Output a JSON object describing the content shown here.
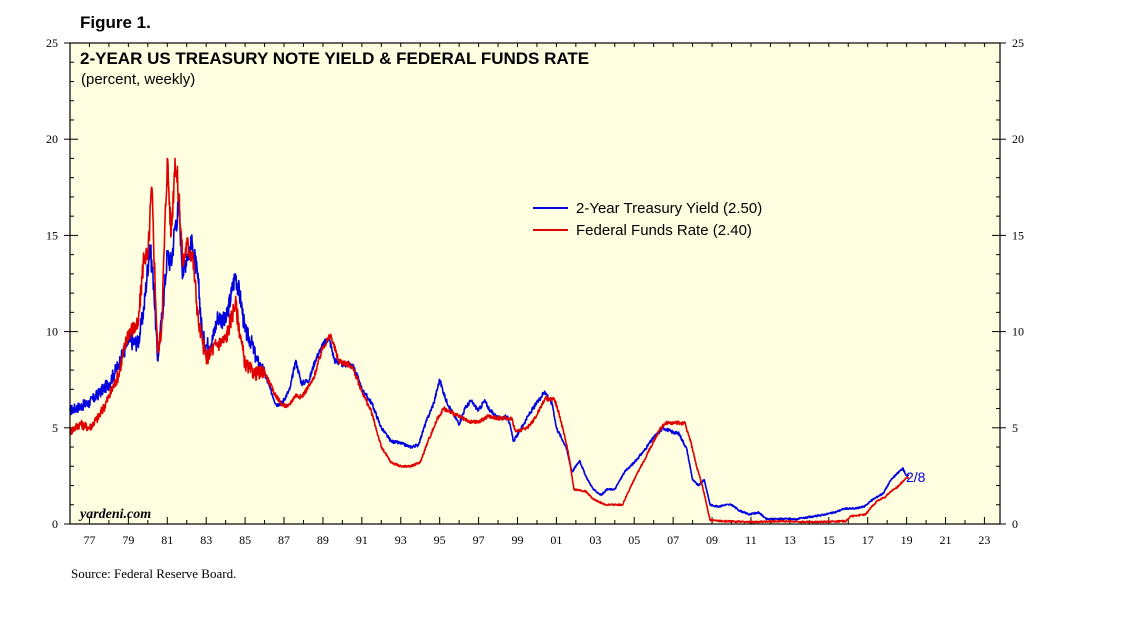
{
  "figure_label": "Figure 1.",
  "source_note": "Source: Federal Reserve Board.",
  "colors": {
    "plot_background": "#FFFEE0",
    "treasury": "#0000E0",
    "fedfunds": "#E00000",
    "axis": "#000000"
  },
  "chart_data": {
    "type": "line",
    "title": "2-YEAR US TREASURY NOTE YIELD & FEDERAL FUNDS RATE",
    "subtitle": "(percent, weekly)",
    "watermark": "yardeni.com",
    "end_label": "2/8",
    "xlabel": "",
    "ylabel": "",
    "xlim": [
      1976.0,
      2023.8
    ],
    "ylim": [
      0,
      25
    ],
    "x_tick_labels": [
      "77",
      "79",
      "81",
      "83",
      "85",
      "87",
      "89",
      "91",
      "93",
      "95",
      "97",
      "99",
      "01",
      "03",
      "05",
      "07",
      "09",
      "11",
      "13",
      "15",
      "17",
      "19",
      "21",
      "23"
    ],
    "x_tick_positions": [
      1977,
      1979,
      1981,
      1983,
      1985,
      1987,
      1989,
      1991,
      1993,
      1995,
      1997,
      1999,
      2001,
      2003,
      2005,
      2007,
      2009,
      2011,
      2013,
      2015,
      2017,
      2019,
      2021,
      2023
    ],
    "y_ticks": [
      0,
      5,
      10,
      15,
      20,
      25
    ],
    "legend": {
      "placement": "upper-center"
    },
    "series": [
      {
        "name": "2-Year Treasury Yield (2.50)",
        "color_key": "treasury",
        "points": [
          [
            1976.0,
            5.9
          ],
          [
            1976.5,
            6.1
          ],
          [
            1977.0,
            6.3
          ],
          [
            1977.5,
            6.8
          ],
          [
            1978.0,
            7.3
          ],
          [
            1978.5,
            8.3
          ],
          [
            1979.0,
            9.5
          ],
          [
            1979.5,
            9.4
          ],
          [
            1979.8,
            11.2
          ],
          [
            1980.1,
            14.5
          ],
          [
            1980.3,
            12.5
          ],
          [
            1980.5,
            8.5
          ],
          [
            1980.8,
            11.5
          ],
          [
            1981.0,
            14.0
          ],
          [
            1981.2,
            13.5
          ],
          [
            1981.4,
            15.5
          ],
          [
            1981.6,
            16.5
          ],
          [
            1981.8,
            13.0
          ],
          [
            1982.0,
            14.0
          ],
          [
            1982.3,
            14.5
          ],
          [
            1982.6,
            12.5
          ],
          [
            1982.8,
            9.8
          ],
          [
            1983.0,
            9.3
          ],
          [
            1983.3,
            9.5
          ],
          [
            1983.6,
            10.8
          ],
          [
            1984.0,
            10.5
          ],
          [
            1984.3,
            12.0
          ],
          [
            1984.5,
            13.0
          ],
          [
            1984.8,
            11.5
          ],
          [
            1985.0,
            10.0
          ],
          [
            1985.3,
            9.5
          ],
          [
            1985.6,
            8.5
          ],
          [
            1986.0,
            7.8
          ],
          [
            1986.3,
            7.0
          ],
          [
            1986.6,
            6.2
          ],
          [
            1986.9,
            6.3
          ],
          [
            1987.3,
            7.0
          ],
          [
            1987.6,
            8.5
          ],
          [
            1987.9,
            7.3
          ],
          [
            1988.3,
            7.5
          ],
          [
            1988.6,
            8.5
          ],
          [
            1989.0,
            9.3
          ],
          [
            1989.3,
            9.7
          ],
          [
            1989.6,
            8.5
          ],
          [
            1990.0,
            8.3
          ],
          [
            1990.5,
            8.3
          ],
          [
            1990.8,
            7.6
          ],
          [
            1991.0,
            7.0
          ],
          [
            1991.5,
            6.3
          ],
          [
            1992.0,
            5.0
          ],
          [
            1992.5,
            4.3
          ],
          [
            1993.0,
            4.2
          ],
          [
            1993.5,
            4.0
          ],
          [
            1993.9,
            4.1
          ],
          [
            1994.3,
            5.3
          ],
          [
            1994.7,
            6.3
          ],
          [
            1995.0,
            7.5
          ],
          [
            1995.3,
            6.5
          ],
          [
            1995.6,
            5.9
          ],
          [
            1996.0,
            5.2
          ],
          [
            1996.3,
            6.0
          ],
          [
            1996.6,
            6.4
          ],
          [
            1997.0,
            5.9
          ],
          [
            1997.3,
            6.4
          ],
          [
            1997.6,
            5.9
          ],
          [
            1998.0,
            5.5
          ],
          [
            1998.5,
            5.6
          ],
          [
            1998.8,
            4.3
          ],
          [
            1999.2,
            5.0
          ],
          [
            1999.6,
            5.7
          ],
          [
            2000.0,
            6.3
          ],
          [
            2000.4,
            6.9
          ],
          [
            2000.8,
            6.2
          ],
          [
            2001.0,
            5.0
          ],
          [
            2001.5,
            4.0
          ],
          [
            2001.8,
            2.7
          ],
          [
            2002.2,
            3.3
          ],
          [
            2002.5,
            2.5
          ],
          [
            2002.9,
            1.8
          ],
          [
            2003.3,
            1.5
          ],
          [
            2003.6,
            1.8
          ],
          [
            2004.0,
            1.8
          ],
          [
            2004.5,
            2.7
          ],
          [
            2005.0,
            3.2
          ],
          [
            2005.5,
            3.8
          ],
          [
            2006.0,
            4.5
          ],
          [
            2006.5,
            5.0
          ],
          [
            2006.9,
            4.8
          ],
          [
            2007.3,
            4.7
          ],
          [
            2007.7,
            3.9
          ],
          [
            2008.0,
            2.3
          ],
          [
            2008.3,
            2.0
          ],
          [
            2008.6,
            2.3
          ],
          [
            2008.9,
            1.0
          ],
          [
            2009.3,
            0.9
          ],
          [
            2009.7,
            1.0
          ],
          [
            2010.0,
            1.0
          ],
          [
            2010.4,
            0.7
          ],
          [
            2010.9,
            0.5
          ],
          [
            2011.4,
            0.6
          ],
          [
            2011.8,
            0.25
          ],
          [
            2012.3,
            0.27
          ],
          [
            2012.8,
            0.27
          ],
          [
            2013.3,
            0.25
          ],
          [
            2013.8,
            0.33
          ],
          [
            2014.3,
            0.4
          ],
          [
            2014.8,
            0.5
          ],
          [
            2015.3,
            0.6
          ],
          [
            2015.8,
            0.8
          ],
          [
            2016.3,
            0.8
          ],
          [
            2016.8,
            0.9
          ],
          [
            2017.3,
            1.3
          ],
          [
            2017.8,
            1.6
          ],
          [
            2018.2,
            2.3
          ],
          [
            2018.5,
            2.6
          ],
          [
            2018.8,
            2.9
          ],
          [
            2019.0,
            2.5
          ],
          [
            2019.1,
            2.5
          ]
        ]
      },
      {
        "name": "Federal Funds Rate (2.40)",
        "color_key": "fedfunds",
        "points": [
          [
            1976.0,
            4.8
          ],
          [
            1976.5,
            5.2
          ],
          [
            1977.0,
            5.0
          ],
          [
            1977.5,
            5.6
          ],
          [
            1978.0,
            6.6
          ],
          [
            1978.5,
            7.8
          ],
          [
            1979.0,
            10.0
          ],
          [
            1979.5,
            10.3
          ],
          [
            1979.8,
            14.0
          ],
          [
            1980.0,
            13.8
          ],
          [
            1980.2,
            17.5
          ],
          [
            1980.5,
            9.0
          ],
          [
            1980.7,
            10.0
          ],
          [
            1981.0,
            19.0
          ],
          [
            1981.2,
            15.0
          ],
          [
            1981.4,
            19.0
          ],
          [
            1981.6,
            17.0
          ],
          [
            1981.8,
            13.5
          ],
          [
            1982.0,
            14.5
          ],
          [
            1982.3,
            14.0
          ],
          [
            1982.6,
            10.5
          ],
          [
            1982.8,
            9.5
          ],
          [
            1983.0,
            8.6
          ],
          [
            1983.5,
            9.3
          ],
          [
            1984.0,
            9.6
          ],
          [
            1984.5,
            11.5
          ],
          [
            1984.8,
            9.5
          ],
          [
            1985.0,
            8.3
          ],
          [
            1985.5,
            7.8
          ],
          [
            1986.0,
            7.9
          ],
          [
            1986.5,
            6.8
          ],
          [
            1986.9,
            6.2
          ],
          [
            1987.2,
            6.1
          ],
          [
            1987.6,
            6.7
          ],
          [
            1987.9,
            6.6
          ],
          [
            1988.5,
            7.5
          ],
          [
            1989.0,
            9.2
          ],
          [
            1989.4,
            9.8
          ],
          [
            1989.8,
            8.5
          ],
          [
            1990.5,
            8.2
          ],
          [
            1991.0,
            6.9
          ],
          [
            1991.5,
            5.8
          ],
          [
            1992.0,
            4.0
          ],
          [
            1992.5,
            3.2
          ],
          [
            1993.0,
            3.0
          ],
          [
            1993.5,
            3.0
          ],
          [
            1994.0,
            3.2
          ],
          [
            1994.4,
            4.3
          ],
          [
            1994.9,
            5.5
          ],
          [
            1995.2,
            6.0
          ],
          [
            1995.8,
            5.7
          ],
          [
            1996.5,
            5.3
          ],
          [
            1997.0,
            5.3
          ],
          [
            1997.5,
            5.6
          ],
          [
            1998.0,
            5.5
          ],
          [
            1998.7,
            5.5
          ],
          [
            1998.9,
            4.8
          ],
          [
            1999.5,
            5.0
          ],
          [
            1999.9,
            5.5
          ],
          [
            2000.4,
            6.5
          ],
          [
            2000.9,
            6.5
          ],
          [
            2001.2,
            5.5
          ],
          [
            2001.6,
            3.8
          ],
          [
            2001.9,
            1.8
          ],
          [
            2002.5,
            1.7
          ],
          [
            2002.9,
            1.3
          ],
          [
            2003.5,
            1.0
          ],
          [
            2004.4,
            1.0
          ],
          [
            2004.8,
            1.9
          ],
          [
            2005.3,
            2.9
          ],
          [
            2005.8,
            3.9
          ],
          [
            2006.3,
            4.9
          ],
          [
            2006.6,
            5.25
          ],
          [
            2007.6,
            5.25
          ],
          [
            2007.9,
            4.3
          ],
          [
            2008.2,
            3.0
          ],
          [
            2008.5,
            2.0
          ],
          [
            2008.9,
            0.2
          ],
          [
            2009.5,
            0.15
          ],
          [
            2011.0,
            0.1
          ],
          [
            2012.5,
            0.15
          ],
          [
            2014.0,
            0.1
          ],
          [
            2015.9,
            0.15
          ],
          [
            2016.1,
            0.4
          ],
          [
            2016.9,
            0.5
          ],
          [
            2017.2,
            0.9
          ],
          [
            2017.5,
            1.2
          ],
          [
            2017.9,
            1.4
          ],
          [
            2018.2,
            1.7
          ],
          [
            2018.5,
            1.9
          ],
          [
            2018.8,
            2.2
          ],
          [
            2019.0,
            2.4
          ],
          [
            2019.1,
            2.4
          ]
        ]
      }
    ]
  }
}
